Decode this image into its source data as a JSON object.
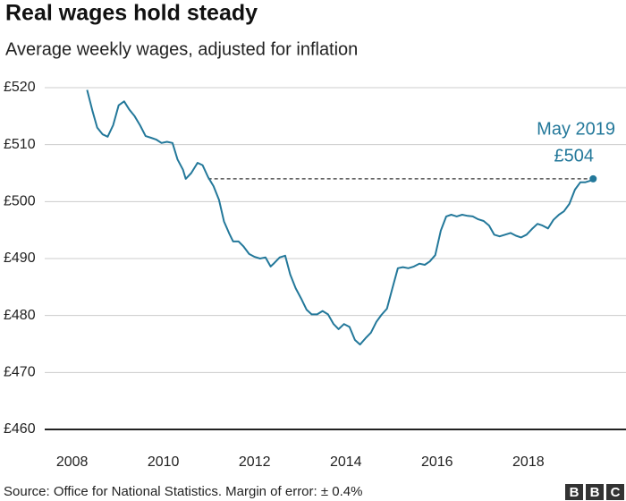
{
  "chart_data": {
    "type": "line",
    "title": "Real wages hold steady",
    "subtitle": "Average weekly wages, adjusted for inflation",
    "source": "Source: Office for National Statistics. Margin of error: ± 0.4%",
    "logo": [
      "B",
      "B",
      "C"
    ],
    "xlim": [
      2007.4,
      2020.14
    ],
    "xticks": [
      2008,
      2010,
      2012,
      2014,
      2016,
      2018
    ],
    "ylim": [
      460,
      520
    ],
    "yticks": [
      {
        "value": 460,
        "label": "£460"
      },
      {
        "value": 470,
        "label": "£470"
      },
      {
        "value": 480,
        "label": "£480"
      },
      {
        "value": 490,
        "label": "£490"
      },
      {
        "value": 500,
        "label": "£500"
      },
      {
        "value": 510,
        "label": "£510"
      },
      {
        "value": 520,
        "label": "£520"
      }
    ],
    "grid": true,
    "annotation": {
      "text": "May 2019",
      "value": 504,
      "value_label": "£504",
      "x_start": 2010.98
    },
    "x": [
      2008.33,
      2008.45,
      2008.55,
      2008.67,
      2008.78,
      2008.9,
      2009.02,
      2009.14,
      2009.25,
      2009.37,
      2009.49,
      2009.61,
      2009.73,
      2009.84,
      2009.96,
      2010.08,
      2010.2,
      2010.31,
      2010.43,
      2010.49,
      2010.61,
      2010.75,
      2010.86,
      2010.98,
      2011.1,
      2011.22,
      2011.33,
      2011.45,
      2011.53,
      2011.65,
      2011.76,
      2011.88,
      2012.0,
      2012.12,
      2012.24,
      2012.35,
      2012.43,
      2012.55,
      2012.67,
      2012.78,
      2012.9,
      2013.02,
      2013.14,
      2013.25,
      2013.37,
      2013.49,
      2013.61,
      2013.73,
      2013.84,
      2013.96,
      2014.08,
      2014.2,
      2014.31,
      2014.43,
      2014.55,
      2014.67,
      2014.78,
      2014.9,
      2015.02,
      2015.14,
      2015.25,
      2015.37,
      2015.49,
      2015.61,
      2015.73,
      2015.84,
      2015.96,
      2016.08,
      2016.2,
      2016.31,
      2016.43,
      2016.55,
      2016.67,
      2016.78,
      2016.9,
      2017.02,
      2017.14,
      2017.25,
      2017.37,
      2017.49,
      2017.61,
      2017.73,
      2017.84,
      2017.96,
      2018.08,
      2018.2,
      2018.31,
      2018.43,
      2018.55,
      2018.67,
      2018.78,
      2018.9,
      2019.02,
      2019.14,
      2019.25,
      2019.37,
      2019.42
    ],
    "series": [
      {
        "name": "Average weekly wages",
        "color": "#23789a",
        "values": [
          519.6,
          515.8,
          513,
          511.8,
          511.4,
          513.4,
          516.9,
          517.6,
          516.2,
          515,
          513.4,
          511.5,
          511.2,
          510.9,
          510.3,
          510.5,
          510.3,
          507.4,
          505.6,
          504,
          505,
          506.8,
          506.4,
          504.3,
          502.7,
          500.3,
          496.5,
          494.3,
          493,
          493,
          492.1,
          490.8,
          490.3,
          490,
          490.2,
          488.6,
          489.2,
          490.2,
          490.5,
          487.2,
          484.8,
          483,
          481,
          480.2,
          480.2,
          480.8,
          480.2,
          478.5,
          477.6,
          478.5,
          478,
          475.7,
          474.9,
          476,
          477,
          478.9,
          480.1,
          481.2,
          484.8,
          488.3,
          488.5,
          488.3,
          488.6,
          489.1,
          488.9,
          489.5,
          490.6,
          494.9,
          497.4,
          497.7,
          497.4,
          497.7,
          497.5,
          497.4,
          496.9,
          496.6,
          495.8,
          494.2,
          493.9,
          494.2,
          494.5,
          494,
          493.7,
          494.2,
          495.2,
          496.1,
          495.8,
          495.3,
          496.8,
          497.7,
          498.3,
          499.6,
          502.1,
          503.4,
          503.4,
          503.7,
          504
        ]
      }
    ]
  }
}
